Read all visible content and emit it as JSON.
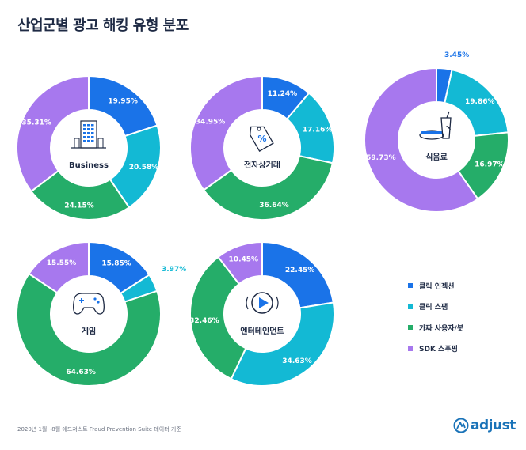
{
  "title": "산업군별 광고 해킹 유형 분포",
  "colors": {
    "click_injection": "#1a73e8",
    "click_spam": "#13b9d4",
    "fake_users": "#25ad69",
    "sdk_spoofing": "#a778ee"
  },
  "legend": [
    {
      "label": "클릭 인젝션",
      "color": "#1a73e8"
    },
    {
      "label": "클릭 스팸",
      "color": "#13b9d4"
    },
    {
      "label": "가짜 사용자/봇",
      "color": "#25ad69"
    },
    {
      "label": "SDK 스푸핑",
      "color": "#a778ee"
    }
  ],
  "chart_data": [
    {
      "type": "pie",
      "title": "Business",
      "icon": "building-icon",
      "categories": [
        "클릭 인젝션",
        "클릭 스팸",
        "가짜 사용자/봇",
        "SDK 스푸핑"
      ],
      "values": [
        19.95,
        20.58,
        24.15,
        35.31
      ],
      "labels": [
        "19.95%",
        "20.58%",
        "24.15%",
        "35.31%"
      ]
    },
    {
      "type": "pie",
      "title": "전자상거래",
      "icon": "price-tag-icon",
      "categories": [
        "클릭 인젝션",
        "클릭 스팸",
        "가짜 사용자/봇",
        "SDK 스푸핑"
      ],
      "values": [
        11.24,
        17.16,
        36.64,
        34.95
      ],
      "labels": [
        "11.24%",
        "17.16%",
        "36.64%",
        "34.95%"
      ]
    },
    {
      "type": "pie",
      "title": "식음료",
      "icon": "food-icon",
      "categories": [
        "클릭 인젝션",
        "클릭 스팸",
        "가짜 사용자/봇",
        "SDK 스푸핑"
      ],
      "values": [
        3.45,
        19.86,
        16.97,
        59.73
      ],
      "labels": [
        "3.45%",
        "19.86%",
        "16.97%",
        "59.73%"
      ]
    },
    {
      "type": "pie",
      "title": "게임",
      "icon": "gamepad-icon",
      "categories": [
        "클릭 인젝션",
        "클릭 스팸",
        "가짜 사용자/봇",
        "SDK 스푸핑"
      ],
      "values": [
        15.85,
        3.97,
        64.63,
        15.55
      ],
      "labels": [
        "15.85%",
        "3.97%",
        "64.63%",
        "15.55%"
      ]
    },
    {
      "type": "pie",
      "title": "엔터테인먼트",
      "icon": "play-icon",
      "categories": [
        "클릭 인젝션",
        "클릭 스팸",
        "가짜 사용자/봇",
        "SDK 스푸핑"
      ],
      "values": [
        22.45,
        34.63,
        32.46,
        10.45
      ],
      "labels": [
        "22.45%",
        "34.63%",
        "32.46%",
        "10.45%"
      ]
    }
  ],
  "footnote": "2020년 1월~8월 애드저스트 Fraud Prevention Suite 데이터 기준",
  "logo": {
    "text": "adjust",
    "icon": "adjust-logo-icon"
  }
}
